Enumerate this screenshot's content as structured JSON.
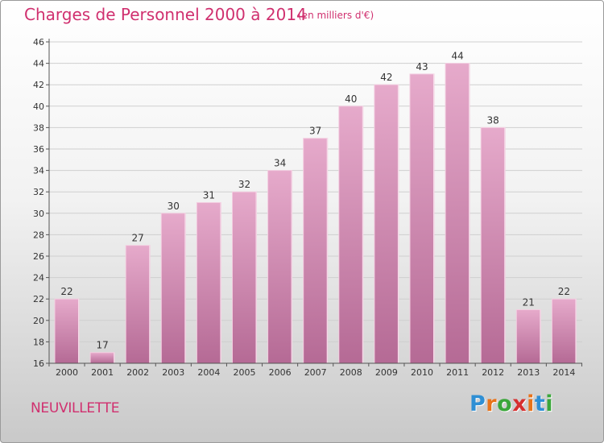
{
  "header": {
    "title": "Charges de Personnel 2000 à 2014",
    "subtitle": "(en milliers d'€)"
  },
  "footer": {
    "commune": "NEUVILLETTE",
    "logo": {
      "text": "Proxiti",
      "letter_colors": [
        "#2f8fd4",
        "#e8731a",
        "#3aa63a",
        "#d62f2f",
        "#e8731a",
        "#2f8fd4",
        "#3aa63a"
      ]
    }
  },
  "colors": {
    "bar_top": "#e6aacb",
    "bar_bottom": "#b56a95",
    "text": "#d0306f",
    "grid": "#cfcfcf"
  },
  "chart_data": {
    "type": "bar",
    "title": "Charges de Personnel 2000 à 2014",
    "subtitle": "(en milliers d'€)",
    "categories": [
      "2000",
      "2001",
      "2002",
      "2003",
      "2004",
      "2005",
      "2006",
      "2007",
      "2008",
      "2009",
      "2010",
      "2011",
      "2012",
      "2013",
      "2014"
    ],
    "values": [
      22,
      17,
      27,
      30,
      31,
      32,
      34,
      37,
      40,
      42,
      43,
      44,
      38,
      21,
      22
    ],
    "ylim": [
      16,
      46
    ],
    "yticks": [
      16,
      18,
      20,
      22,
      24,
      26,
      28,
      30,
      32,
      34,
      36,
      38,
      40,
      42,
      44,
      46
    ],
    "grid": true,
    "show_data_labels": true
  }
}
